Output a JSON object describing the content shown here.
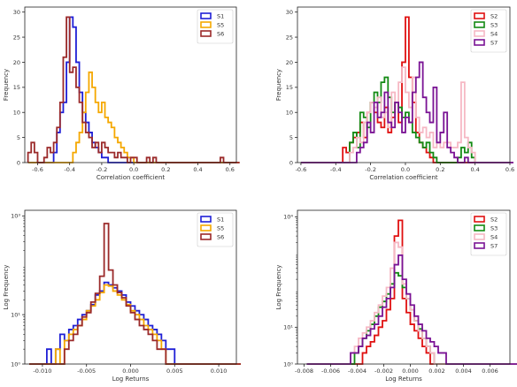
{
  "chart_data": [
    {
      "type": "histogram",
      "xlabel": "Correlation coefficient",
      "ylabel": "Frequency",
      "xlim": [
        -0.68,
        0.64
      ],
      "ylim": [
        0,
        31
      ],
      "xticks": [
        -0.6,
        -0.4,
        -0.2,
        0.0,
        0.2,
        0.4,
        0.6
      ],
      "xtick_labels": [
        "-0.6",
        "-0.4",
        "-0.2",
        "0.0",
        "0.2",
        "0.4",
        "0.6"
      ],
      "yticks": [
        0,
        5,
        10,
        15,
        20,
        25,
        30
      ],
      "ytick_labels": [
        "0",
        "5",
        "10",
        "15",
        "20",
        "25",
        "30"
      ],
      "legend_position": "top-right",
      "bin_start": -0.66,
      "bin_width": 0.02,
      "series": [
        {
          "name": "S1",
          "color": "#1f1fd6",
          "counts": [
            0,
            0,
            0,
            0,
            0,
            0,
            0,
            0,
            2,
            6,
            10,
            12,
            20,
            29,
            27,
            20,
            14,
            10,
            8,
            6,
            4,
            3,
            2,
            1,
            1,
            0,
            0,
            0,
            0,
            0,
            0,
            0,
            0,
            0,
            0,
            0,
            0,
            0,
            0,
            0,
            0,
            0,
            0,
            0,
            0,
            0,
            0,
            0,
            0,
            0,
            0,
            0,
            0,
            0,
            0,
            0,
            0,
            0,
            0,
            0,
            0,
            0,
            0,
            0,
            0,
            0
          ]
        },
        {
          "name": "S5",
          "color": "#f5a800",
          "counts": [
            0,
            0,
            0,
            0,
            0,
            0,
            0,
            0,
            0,
            0,
            0,
            0,
            0,
            0,
            2,
            4,
            6,
            10,
            14,
            18,
            15,
            12,
            10,
            12,
            9,
            8,
            7,
            5,
            4,
            3,
            2,
            1,
            1,
            0,
            0,
            0,
            0,
            0,
            0,
            0,
            0,
            0,
            0,
            0,
            0,
            0,
            0,
            0,
            0,
            0,
            0,
            0,
            0,
            0,
            0,
            0,
            0,
            0,
            0,
            0,
            0,
            0,
            0,
            0,
            0,
            0
          ]
        },
        {
          "name": "S6",
          "color": "#9b2a2a",
          "counts": [
            2,
            4,
            2,
            0,
            0,
            1,
            3,
            2,
            4,
            7,
            12,
            21,
            29,
            18,
            19,
            15,
            12,
            8,
            6,
            5,
            3,
            4,
            2,
            4,
            3,
            2,
            2,
            1,
            2,
            1,
            1,
            0,
            1,
            1,
            0,
            0,
            0,
            1,
            0,
            1,
            0,
            0,
            0,
            0,
            0,
            0,
            0,
            0,
            0,
            0,
            0,
            0,
            0,
            0,
            0,
            0,
            0,
            0,
            0,
            0,
            1,
            0,
            0,
            0,
            0,
            0
          ]
        }
      ]
    },
    {
      "type": "histogram",
      "xlabel": "Correlation coefficient",
      "ylabel": "Frequency",
      "xlim": [
        -0.62,
        0.6
      ],
      "ylim": [
        0,
        31
      ],
      "xticks": [
        -0.6,
        -0.4,
        -0.2,
        0.0,
        0.2,
        0.4,
        0.6
      ],
      "xtick_labels": [
        "-0.6",
        "-0.4",
        "-0.2",
        "0.0",
        "0.2",
        "0.4",
        "0.6"
      ],
      "yticks": [
        0,
        5,
        10,
        15,
        20,
        25,
        30
      ],
      "ytick_labels": [
        "0",
        "5",
        "10",
        "15",
        "20",
        "25",
        "30"
      ],
      "legend_position": "top-right",
      "bin_start": -0.6,
      "bin_width": 0.02,
      "series": [
        {
          "name": "S2",
          "color": "#e01010",
          "counts": [
            0,
            0,
            0,
            0,
            0,
            0,
            0,
            0,
            0,
            0,
            0,
            0,
            3,
            2,
            4,
            5,
            6,
            8,
            5,
            10,
            12,
            10,
            8,
            7,
            11,
            6,
            9,
            12,
            8,
            20,
            29,
            17,
            12,
            6,
            4,
            3,
            2,
            1,
            0,
            0,
            0,
            0,
            0,
            0,
            0,
            0,
            0,
            0,
            0,
            0,
            0,
            0,
            0,
            0,
            0,
            0,
            0,
            0,
            0,
            0,
            0
          ]
        },
        {
          "name": "S3",
          "color": "#138a13",
          "counts": [
            0,
            0,
            0,
            0,
            0,
            0,
            0,
            0,
            0,
            0,
            0,
            0,
            0,
            0,
            4,
            6,
            3,
            10,
            9,
            7,
            12,
            14,
            12,
            16,
            17,
            13,
            10,
            12,
            11,
            9,
            10,
            8,
            6,
            5,
            4,
            3,
            4,
            2,
            1,
            0,
            0,
            0,
            0,
            0,
            0,
            1,
            3,
            2,
            4,
            1,
            0,
            0,
            0,
            0,
            0,
            0,
            0,
            0,
            0,
            0,
            0
          ]
        },
        {
          "name": "S4",
          "color": "#f6b8c4",
          "counts": [
            0,
            0,
            0,
            0,
            0,
            0,
            0,
            0,
            0,
            0,
            0,
            0,
            0,
            0,
            2,
            3,
            5,
            4,
            8,
            10,
            12,
            11,
            13,
            9,
            10,
            7,
            14,
            12,
            16,
            19,
            14,
            11,
            17,
            9,
            6,
            7,
            5,
            6,
            3,
            4,
            3,
            4,
            4,
            3,
            3,
            4,
            16,
            5,
            3,
            2,
            0,
            0,
            0,
            0,
            0,
            0,
            0,
            0,
            0,
            0,
            0
          ]
        },
        {
          "name": "S7",
          "color": "#7a1394",
          "counts": [
            0,
            0,
            0,
            0,
            0,
            0,
            0,
            0,
            0,
            0,
            0,
            0,
            0,
            0,
            0,
            0,
            2,
            3,
            4,
            8,
            6,
            12,
            9,
            10,
            14,
            8,
            7,
            12,
            10,
            6,
            9,
            8,
            14,
            17,
            20,
            13,
            10,
            8,
            15,
            4,
            6,
            10,
            3,
            2,
            1,
            0,
            0,
            1,
            0,
            0,
            0,
            0,
            0,
            0,
            0,
            0,
            0,
            0,
            0,
            0,
            0
          ]
        }
      ]
    },
    {
      "type": "histogram",
      "xlabel": "Log Returns",
      "ylabel": "Log Frequency",
      "xlim": [
        -0.012,
        0.012
      ],
      "log_y": true,
      "ylim": [
        1,
        1300
      ],
      "xticks": [
        -0.01,
        -0.005,
        0.0,
        0.005,
        0.01
      ],
      "xtick_labels": [
        "-0.010",
        "-0.005",
        "0.000",
        "0.005",
        "0.010"
      ],
      "yticks": [
        1,
        10,
        1000
      ],
      "ytick_labels": [
        "10⁰",
        "10¹",
        "10³"
      ],
      "legend_position": "top-right",
      "bin_start": -0.0115,
      "bin_width": 0.0005,
      "series": [
        {
          "name": "S1",
          "color": "#1f1fd6",
          "counts": [
            0,
            0,
            1,
            1,
            2,
            1,
            2,
            4,
            3,
            5,
            6,
            8,
            10,
            12,
            16,
            25,
            30,
            45,
            40,
            35,
            30,
            25,
            18,
            15,
            12,
            10,
            8,
            6,
            5,
            4,
            3,
            2,
            2,
            1,
            1,
            0,
            0,
            0,
            0,
            0,
            0,
            0,
            0,
            0,
            0,
            0,
            0,
            0
          ]
        },
        {
          "name": "S5",
          "color": "#f5a800",
          "counts": [
            0,
            0,
            0,
            0,
            1,
            1,
            2,
            1,
            3,
            4,
            5,
            6,
            8,
            12,
            15,
            20,
            28,
            40,
            38,
            30,
            25,
            20,
            16,
            12,
            10,
            8,
            6,
            5,
            4,
            3,
            2,
            1,
            1,
            1,
            0,
            0,
            0,
            0,
            0,
            0,
            0,
            0,
            0,
            0,
            0,
            0,
            0,
            0
          ]
        },
        {
          "name": "S6",
          "color": "#9b2a2a",
          "counts": [
            0,
            0,
            0,
            0,
            0,
            1,
            0,
            1,
            2,
            3,
            4,
            6,
            9,
            11,
            18,
            27,
            60,
            700,
            80,
            40,
            28,
            22,
            15,
            11,
            8,
            6,
            5,
            4,
            3,
            2,
            2,
            1,
            1,
            1,
            0,
            1,
            0,
            0,
            0,
            0,
            0,
            0,
            0,
            0,
            0,
            0,
            0,
            0
          ]
        }
      ]
    },
    {
      "type": "histogram",
      "xlabel": "Log Returns",
      "ylabel": "Log Frequency",
      "xlim": [
        -0.0085,
        0.0075
      ],
      "log_y": true,
      "ylim": [
        1,
        15000
      ],
      "xticks": [
        -0.008,
        -0.006,
        -0.004,
        -0.002,
        0.0,
        0.002,
        0.004,
        0.006
      ],
      "xtick_labels": [
        "-0.008",
        "-0.006",
        "-0.004",
        "-0.002",
        "0.000",
        "0.002",
        "0.004",
        "0.006"
      ],
      "yticks": [
        1,
        10,
        10000
      ],
      "ytick_labels": [
        "10⁰",
        "10¹",
        "10⁴"
      ],
      "legend_position": "top-right",
      "bin_start": -0.0078,
      "bin_width": 0.0003,
      "series": [
        {
          "name": "S2",
          "color": "#e01010",
          "counts": [
            0,
            0,
            0,
            0,
            0,
            0,
            0,
            0,
            0,
            0,
            0,
            0,
            1,
            1,
            2,
            3,
            4,
            6,
            10,
            15,
            30,
            60,
            3000,
            8000,
            60,
            25,
            12,
            8,
            5,
            3,
            2,
            1,
            1,
            0,
            0,
            0,
            0,
            0,
            0,
            0,
            0,
            0,
            0,
            0,
            0,
            0,
            0,
            0,
            0,
            0,
            0,
            0,
            0,
            0
          ]
        },
        {
          "name": "S3",
          "color": "#138a13",
          "counts": [
            0,
            0,
            0,
            0,
            0,
            0,
            0,
            0,
            0,
            0,
            1,
            1,
            2,
            3,
            5,
            8,
            12,
            20,
            35,
            50,
            80,
            150,
            300,
            250,
            120,
            60,
            30,
            15,
            9,
            5,
            3,
            2,
            1,
            1,
            0,
            0,
            0,
            0,
            0,
            0,
            0,
            0,
            0,
            0,
            0,
            0,
            0,
            0,
            0,
            0,
            0,
            0,
            0,
            0
          ]
        },
        {
          "name": "S4",
          "color": "#f6b8c4",
          "counts": [
            0,
            0,
            0,
            0,
            0,
            0,
            0,
            0,
            0,
            1,
            1,
            2,
            3,
            5,
            7,
            10,
            15,
            25,
            40,
            70,
            120,
            400,
            2000,
            1500,
            150,
            60,
            30,
            15,
            8,
            5,
            3,
            2,
            1,
            1,
            0,
            0,
            0,
            0,
            0,
            0,
            0,
            0,
            0,
            0,
            0,
            0,
            0,
            0,
            0,
            0,
            0,
            0,
            0,
            0
          ]
        },
        {
          "name": "S7",
          "color": "#7a1394",
          "counts": [
            0,
            0,
            0,
            0,
            0,
            0,
            0,
            1,
            0,
            1,
            1,
            2,
            2,
            3,
            5,
            6,
            9,
            12,
            20,
            35,
            60,
            120,
            500,
            900,
            200,
            80,
            40,
            20,
            12,
            8,
            5,
            4,
            3,
            2,
            2,
            1,
            1,
            1,
            0,
            0,
            0,
            0,
            0,
            0,
            0,
            0,
            0,
            0,
            0,
            0,
            0,
            0,
            0,
            0
          ]
        }
      ]
    }
  ]
}
